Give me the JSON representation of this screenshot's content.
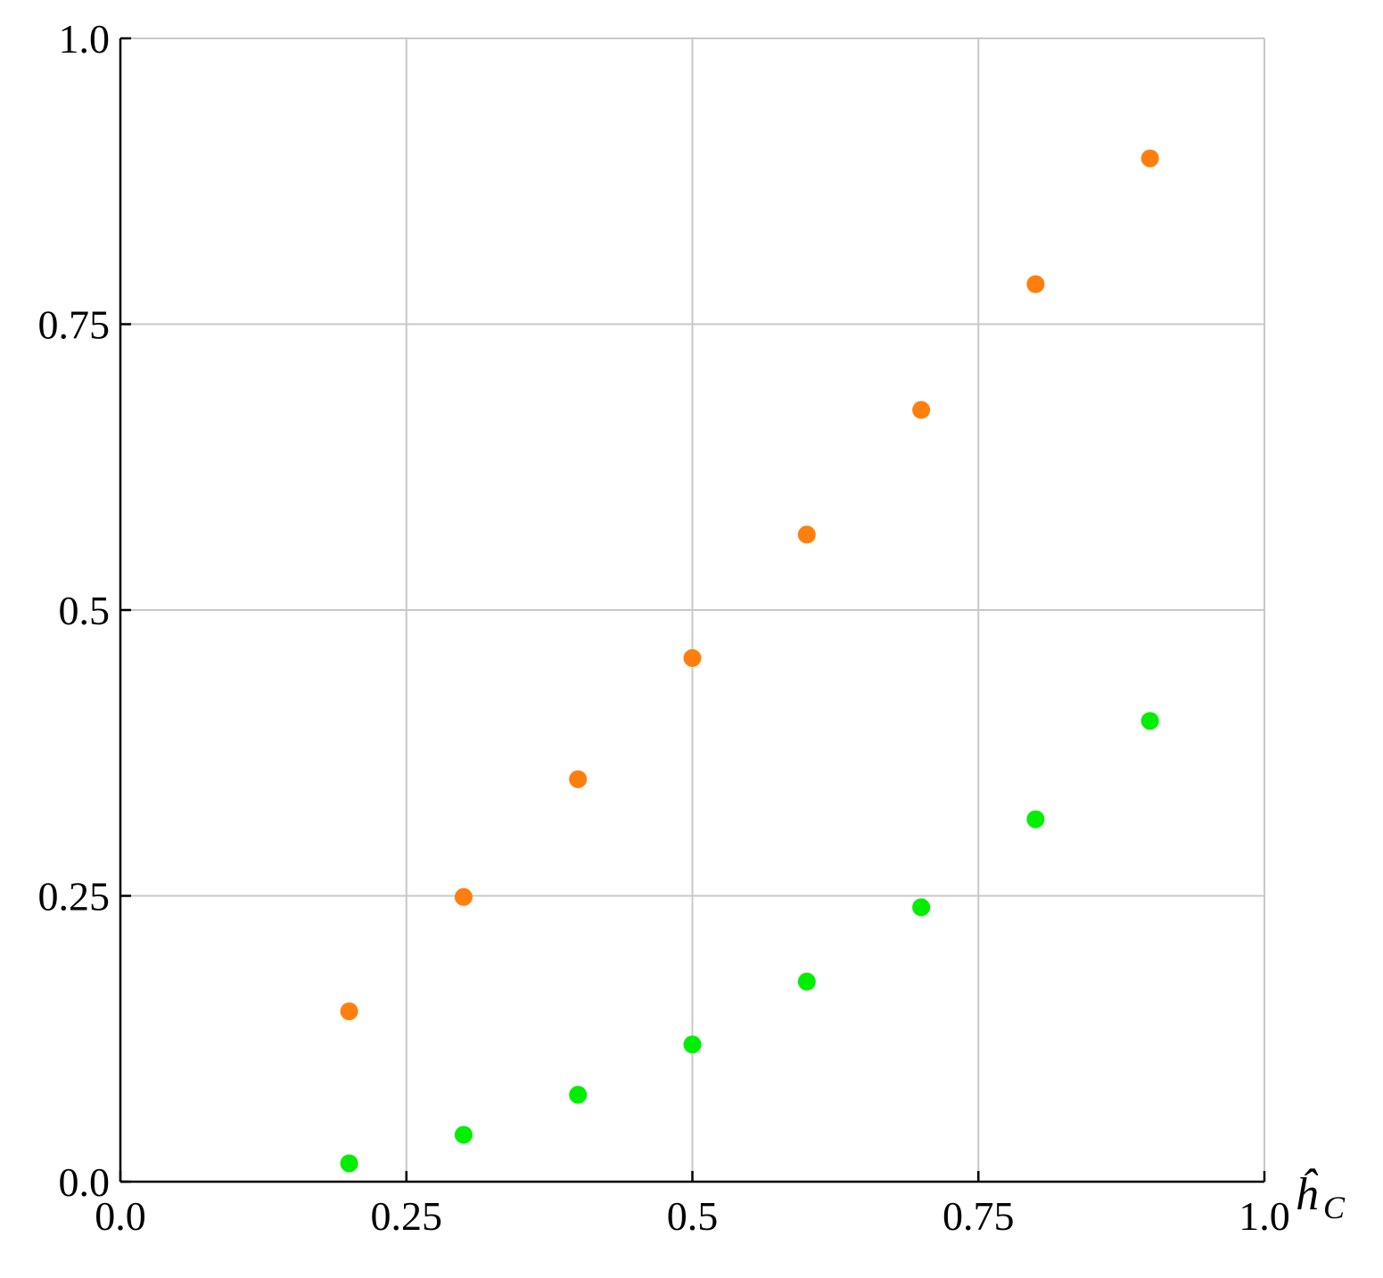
{
  "chart_data": {
    "type": "scatter",
    "title": "",
    "xlabel": "ĥ",
    "xlabel_subscript": "C",
    "ylabel": "",
    "xlim": [
      0,
      1
    ],
    "ylim": [
      0,
      1
    ],
    "grid": true,
    "x_ticks": [
      0,
      0.25,
      0.5,
      0.75,
      1
    ],
    "y_ticks": [
      0,
      0.25,
      0.5,
      0.75,
      1
    ],
    "x_tick_labels": [
      "0.0",
      "0.25",
      "0.5",
      "0.75",
      "1.0"
    ],
    "y_tick_labels": [
      "0.0",
      "0.25",
      "0.5",
      "0.75",
      "1.0"
    ],
    "series": [
      {
        "color": "#ff7f0e",
        "x": [
          0.2,
          0.3,
          0.4,
          0.5,
          0.6,
          0.7,
          0.8,
          0.9
        ],
        "y": [
          0.149,
          0.249,
          0.352,
          0.458,
          0.566,
          0.675,
          0.785,
          0.895
        ]
      },
      {
        "color": "#00ee00",
        "x": [
          0.2,
          0.3,
          0.4,
          0.5,
          0.6,
          0.7,
          0.8,
          0.9
        ],
        "y": [
          0.016,
          0.041,
          0.076,
          0.12,
          0.175,
          0.24,
          0.317,
          0.403
        ]
      }
    ]
  },
  "colors": {
    "grid": "#c8c8c8",
    "axis": "#000000"
  }
}
